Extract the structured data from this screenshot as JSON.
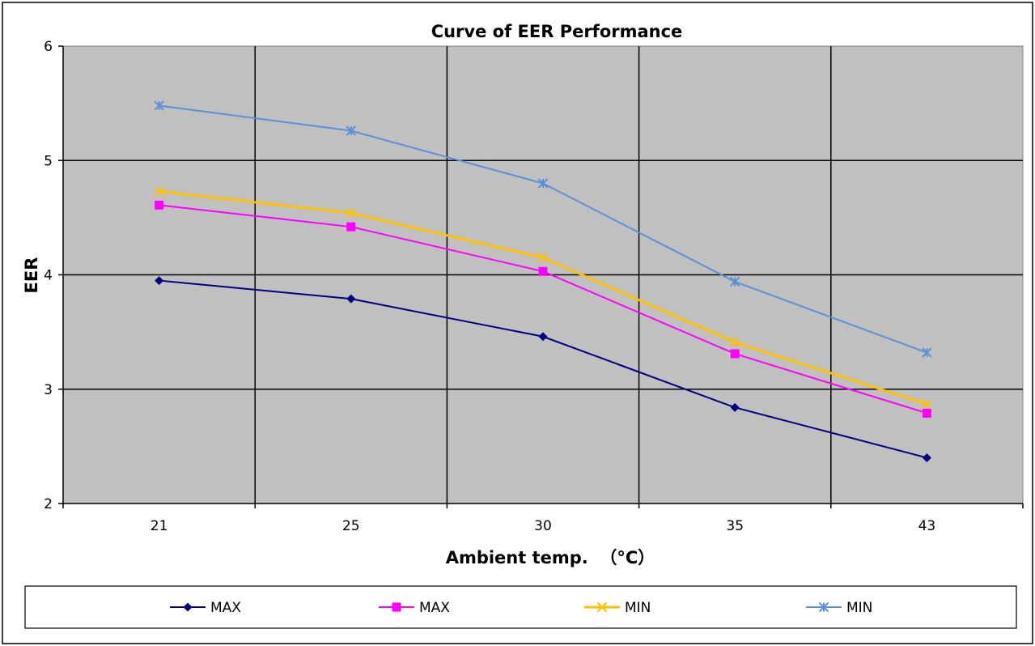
{
  "chart_data": {
    "type": "line",
    "title": "Curve of EER Performance",
    "xlabel": "Ambient temp.  （°C）",
    "ylabel": "EER",
    "categories": [
      "21",
      "25",
      "30",
      "35",
      "43"
    ],
    "ylim": [
      2,
      6
    ],
    "yticks": [
      "2",
      "3",
      "4",
      "5",
      "6"
    ],
    "grid": true,
    "legend_position": "bottom",
    "plot_background": "#c0c0c0",
    "series": [
      {
        "name": "MAX",
        "values": [
          3.95,
          3.79,
          3.46,
          2.84,
          2.4
        ],
        "color": "#000080",
        "marker": "diamond"
      },
      {
        "name": "MAX",
        "values": [
          4.61,
          4.42,
          4.03,
          3.31,
          2.79
        ],
        "color": "#ff00ff",
        "marker": "square"
      },
      {
        "name": "MIN",
        "values": [
          4.73,
          4.54,
          4.15,
          3.41,
          2.87
        ],
        "color": "#ffc000",
        "marker": "x"
      },
      {
        "name": "MIN",
        "values": [
          5.48,
          5.26,
          4.8,
          3.94,
          3.32
        ],
        "color": "#5b8fd8",
        "marker": "star"
      }
    ]
  }
}
